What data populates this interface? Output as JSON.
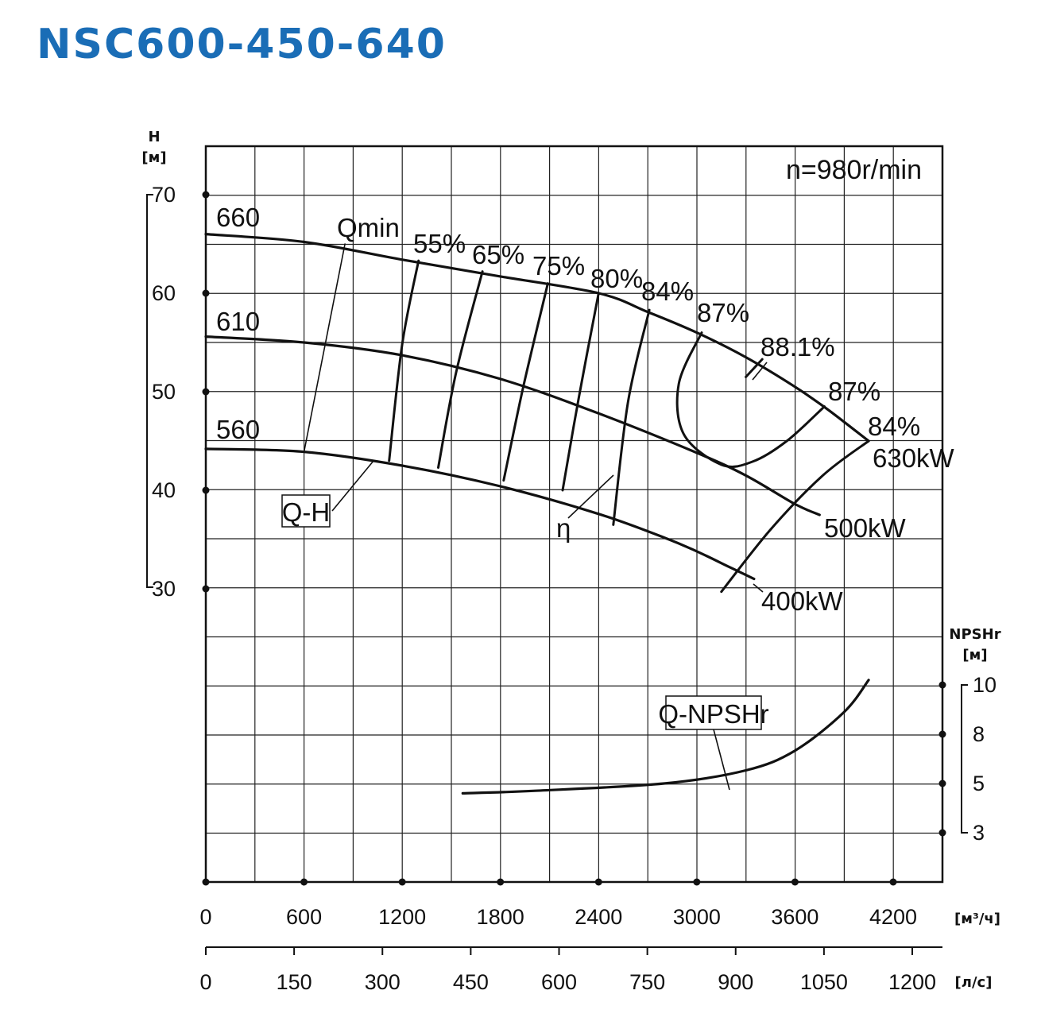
{
  "title": "NSC600-450-640",
  "chart_data": {
    "type": "line",
    "title": "NSC600-450-640",
    "speed_label": "n=980r/min",
    "h_axis": {
      "title": "H",
      "unit": "[м]",
      "ticks": [
        30,
        40,
        50,
        60,
        70
      ],
      "ylim": [
        22,
        75
      ]
    },
    "npsh_axis": {
      "title": "NPSHr",
      "unit": "[м]",
      "ticks": [
        3,
        5,
        8,
        10
      ]
    },
    "x_axis_m3h": {
      "unit": "[м³/ч]",
      "ticks": [
        0,
        600,
        1200,
        1800,
        2400,
        3000,
        3600,
        4200
      ],
      "xlim": [
        0,
        4500
      ]
    },
    "x_axis_ls": {
      "unit": "[л/с]",
      "ticks": [
        0,
        150,
        300,
        450,
        600,
        750,
        900,
        1050,
        1200
      ],
      "xlim": [
        0,
        1250
      ]
    },
    "series": [
      {
        "name": "660",
        "x": [
          0,
          600,
          1200,
          1800,
          2400,
          2700,
          3000,
          3300,
          3600,
          3800,
          4050
        ],
        "y": [
          66,
          65.2,
          63.4,
          61.7,
          60.0,
          58.1,
          56.0,
          53.5,
          50.5,
          48.2,
          45.0
        ]
      },
      {
        "name": "610",
        "x": [
          0,
          600,
          1200,
          1800,
          2400,
          3000,
          3300,
          3600,
          3750
        ],
        "y": [
          55.6,
          55.0,
          53.7,
          51.3,
          47.8,
          43.8,
          41.5,
          38.6,
          37.5
        ]
      },
      {
        "name": "560",
        "x": [
          0,
          600,
          1200,
          1800,
          2400,
          2800,
          3000,
          3200,
          3350
        ],
        "y": [
          44.2,
          43.9,
          42.5,
          40.4,
          37.6,
          35.2,
          33.8,
          32.2,
          31.0
        ]
      }
    ],
    "efficiency_lines": [
      {
        "name": "55%",
        "x": [
          1300,
          1200,
          1120
        ],
        "y": [
          63.3,
          54.8,
          43.0
        ]
      },
      {
        "name": "65%",
        "x": [
          1690,
          1530,
          1420
        ],
        "y": [
          62.2,
          52.0,
          42.3
        ]
      },
      {
        "name": "75%",
        "x": [
          2090,
          1940,
          1820
        ],
        "y": [
          61.0,
          50.5,
          41.0
        ]
      },
      {
        "name": "80%",
        "x": [
          2400,
          2280,
          2180
        ],
        "y": [
          60.0,
          49.5,
          40.0
        ]
      },
      {
        "name": "84%",
        "x": [
          2710,
          2580,
          2490
        ],
        "y": [
          58.3,
          49.0,
          36.5
        ]
      },
      {
        "name": "87%",
        "x": [
          3030,
          2890,
          2920,
          3150,
          3340,
          3550,
          3780
        ],
        "y": [
          56.0,
          50.8,
          45.7,
          42.6,
          42.9,
          45.0,
          48.5
        ]
      },
      {
        "name": "88.1%",
        "x": [
          3400,
          3300
        ],
        "y": [
          53.3,
          51.5
        ]
      },
      {
        "name": "84%",
        "x": [
          4050,
          3770,
          3450,
          3150
        ],
        "y": [
          45.0,
          41.5,
          36.0,
          29.7
        ]
      }
    ],
    "power_labels": [
      "630kW",
      "500kW",
      "400kW"
    ],
    "qmin": {
      "name": "Qmin",
      "x": [
        850,
        600
      ],
      "y": [
        65.0,
        43.9
      ]
    },
    "npshr": {
      "name": "Q-NPSHr",
      "x": [
        1570,
        2000,
        2800,
        3300,
        3600,
        3900,
        4050
      ],
      "y": [
        4.6,
        4.7,
        5.0,
        5.8,
        7.0,
        8.9,
        10.2
      ]
    },
    "labels": {
      "qh_box": "Q-H",
      "eta": "η",
      "npsh_box": "Q-NPSHr",
      "qmin_label": "Qmin",
      "curve_660": "660",
      "curve_610": "610",
      "curve_560": "560",
      "eff_55": "55%",
      "eff_65": "65%",
      "eff_75": "75%",
      "eff_80": "80%",
      "eff_84a": "84%",
      "eff_87a": "87%",
      "eff_881": "88.1%",
      "eff_87b": "87%",
      "eff_84b": "84%",
      "power_630": "630kW",
      "power_500": "500kW",
      "power_400": "400kW"
    },
    "grid": true
  },
  "colors": {
    "title": "#1a6db6",
    "lines": "#111111",
    "grid": "#222222"
  }
}
